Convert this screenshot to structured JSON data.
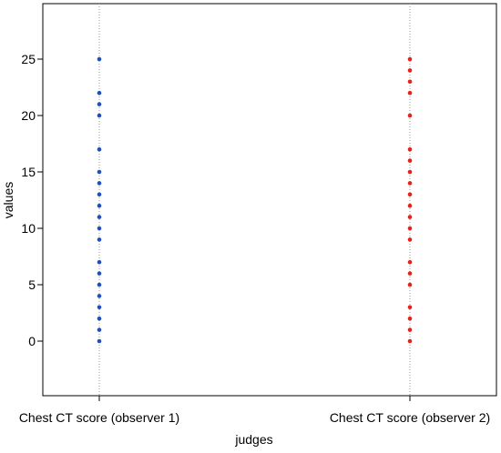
{
  "chart_data": {
    "type": "scatter",
    "title": "",
    "xlabel": "judges",
    "ylabel": "values",
    "ylim": [
      -5,
      28
    ],
    "yticks": [
      0,
      5,
      10,
      15,
      20,
      25
    ],
    "grid": false,
    "categories": [
      "Chest CT score (observer 1)",
      "Chest CT score (observer 2)"
    ],
    "series": [
      {
        "color": "#1f4fbf",
        "values": [
          0,
          1,
          2,
          3,
          4,
          5,
          6,
          7,
          9,
          10,
          11,
          12,
          13,
          14,
          15,
          17,
          20,
          21,
          22,
          25
        ]
      },
      {
        "color": "#e8211b",
        "values": [
          0,
          1,
          2,
          3,
          5,
          6,
          7,
          9,
          10,
          11,
          12,
          13,
          14,
          15,
          16,
          17,
          20,
          22,
          23,
          24,
          25
        ]
      }
    ]
  }
}
